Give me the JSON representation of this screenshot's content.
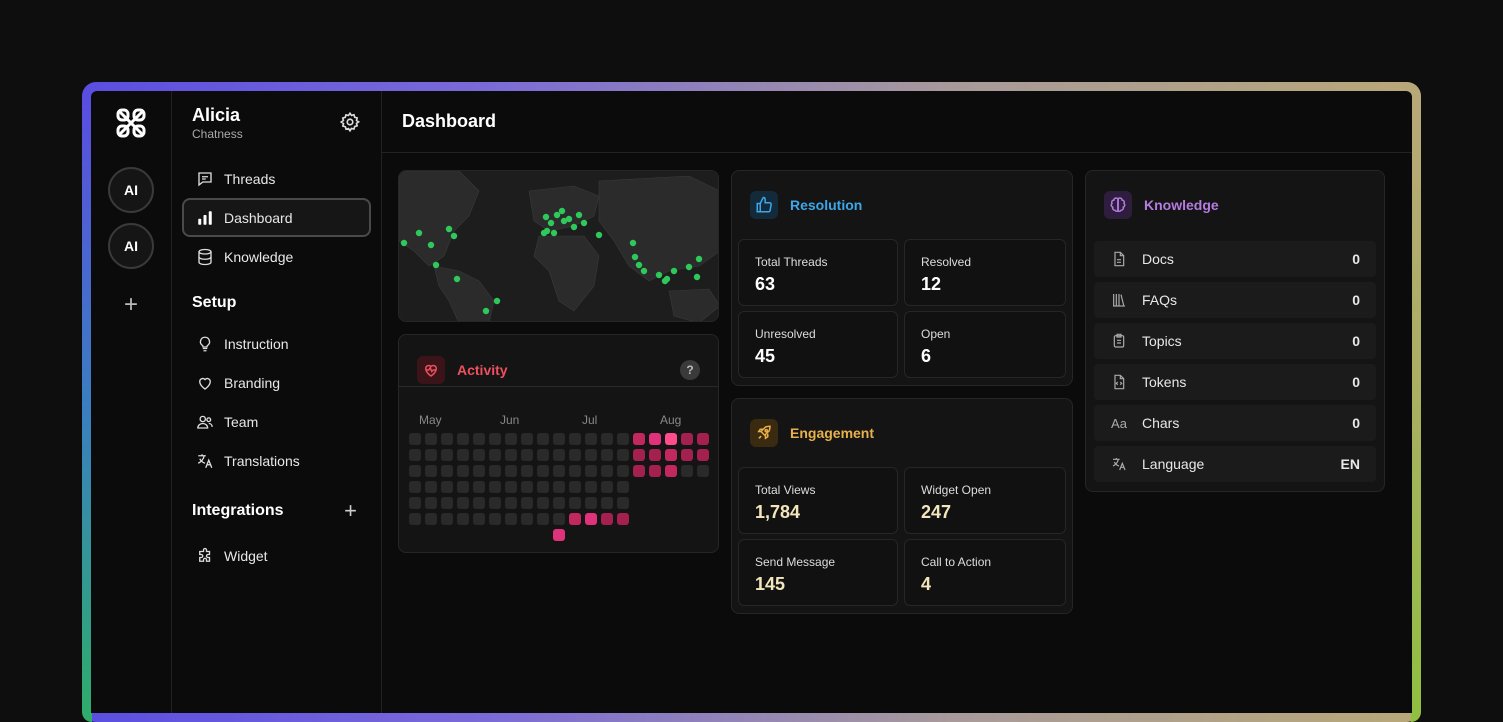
{
  "org": {
    "name": "Alicia",
    "subtitle": "Chatness"
  },
  "rail": {
    "avatars": [
      "AI",
      "AI"
    ],
    "add": "+"
  },
  "nav": {
    "items": [
      {
        "label": "Threads",
        "icon": "chat-icon"
      },
      {
        "label": "Dashboard",
        "icon": "bar-chart-icon",
        "active": true
      },
      {
        "label": "Knowledge",
        "icon": "database-icon"
      }
    ]
  },
  "setup": {
    "title": "Setup",
    "items": [
      {
        "label": "Instruction",
        "icon": "lightbulb-icon"
      },
      {
        "label": "Branding",
        "icon": "heart-icon"
      },
      {
        "label": "Team",
        "icon": "users-icon"
      },
      {
        "label": "Translations",
        "icon": "translate-icon"
      }
    ]
  },
  "integrations": {
    "title": "Integrations",
    "items": [
      {
        "label": "Widget",
        "icon": "puzzle-icon"
      }
    ]
  },
  "page": {
    "title": "Dashboard"
  },
  "activity": {
    "title": "Activity",
    "help": "?",
    "months": [
      "May",
      "Jun",
      "Jul",
      "Aug"
    ],
    "accent": "#ef4f5f"
  },
  "resolution": {
    "title": "Resolution",
    "accent": "#3ea6e8",
    "stats": [
      {
        "label": "Total Threads",
        "value": "63"
      },
      {
        "label": "Resolved",
        "value": "12"
      },
      {
        "label": "Unresolved",
        "value": "45"
      },
      {
        "label": "Open",
        "value": "6"
      }
    ]
  },
  "engagement": {
    "title": "Engagement",
    "accent": "#e8b04a",
    "stats": [
      {
        "label": "Total Views",
        "value": "1,784"
      },
      {
        "label": "Widget Open",
        "value": "247"
      },
      {
        "label": "Send Message",
        "value": "145"
      },
      {
        "label": "Call to Action",
        "value": "4"
      }
    ]
  },
  "knowledge": {
    "title": "Knowledge",
    "accent": "#b57be0",
    "rows": [
      {
        "label": "Docs",
        "value": "0",
        "icon": "file-icon"
      },
      {
        "label": "FAQs",
        "value": "0",
        "icon": "books-icon"
      },
      {
        "label": "Topics",
        "value": "0",
        "icon": "clipboard-icon"
      },
      {
        "label": "Tokens",
        "value": "0",
        "icon": "file-code-icon"
      },
      {
        "label": "Chars",
        "value": "0",
        "icon": "text-aa-icon"
      },
      {
        "label": "Language",
        "value": "EN",
        "icon": "translate-icon"
      }
    ]
  }
}
